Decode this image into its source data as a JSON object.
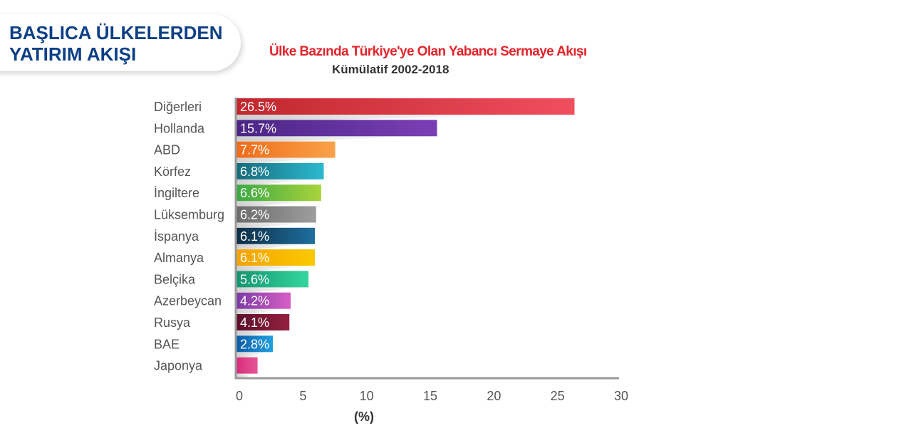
{
  "header": {
    "title": "BAŞLICA ÜLKELERDEN YATIRIM AKIŞI"
  },
  "chart_data": {
    "type": "bar",
    "orientation": "horizontal",
    "title": "Ülke Bazında Türkiye'ye Olan Yabancı Sermaye Akışı",
    "subtitle": "Kümülatif 2002-2018",
    "xlabel": "(%)",
    "ylabel": "",
    "xlim": [
      0,
      30
    ],
    "xticks": [
      0,
      5,
      10,
      15,
      20,
      25,
      30
    ],
    "grid": false,
    "categories": [
      "Diğerleri",
      "Hollanda",
      "ABD",
      "Körfez",
      "İngiltere",
      "Lüksemburg",
      "İspanya",
      "Almanya",
      "Belçika",
      "Azerbeycan",
      "Rusya",
      "BAE",
      "Japonya"
    ],
    "values": [
      26.5,
      15.7,
      7.7,
      6.8,
      6.6,
      6.2,
      6.1,
      6.1,
      5.6,
      4.2,
      4.1,
      2.8,
      1.6
    ],
    "data_labels": [
      "26.5%",
      "15.7%",
      "7.7%",
      "6.8%",
      "6.6%",
      "6.2%",
      "6.1%",
      "6.1%",
      "5.6%",
      "4.2%",
      "4.1%",
      "2.8%",
      ""
    ],
    "colors": [
      [
        "#c1272d",
        "#f04e5e"
      ],
      [
        "#4a2585",
        "#7b3fb5"
      ],
      [
        "#ef6c1a",
        "#f9a34a"
      ],
      [
        "#176a79",
        "#2bbad0"
      ],
      [
        "#3aa845",
        "#a8d43a"
      ],
      [
        "#6b6b6b",
        "#9e9e9e"
      ],
      [
        "#0e2e45",
        "#1e6f9e"
      ],
      [
        "#f4a300",
        "#fbc900"
      ],
      [
        "#14946f",
        "#35d69e"
      ],
      [
        "#7a3aa3",
        "#d75fc6"
      ],
      [
        "#5c0f2c",
        "#95213f"
      ],
      [
        "#0b5aa5",
        "#22a0e0"
      ],
      [
        "#d62c7a",
        "#e85596"
      ]
    ]
  }
}
